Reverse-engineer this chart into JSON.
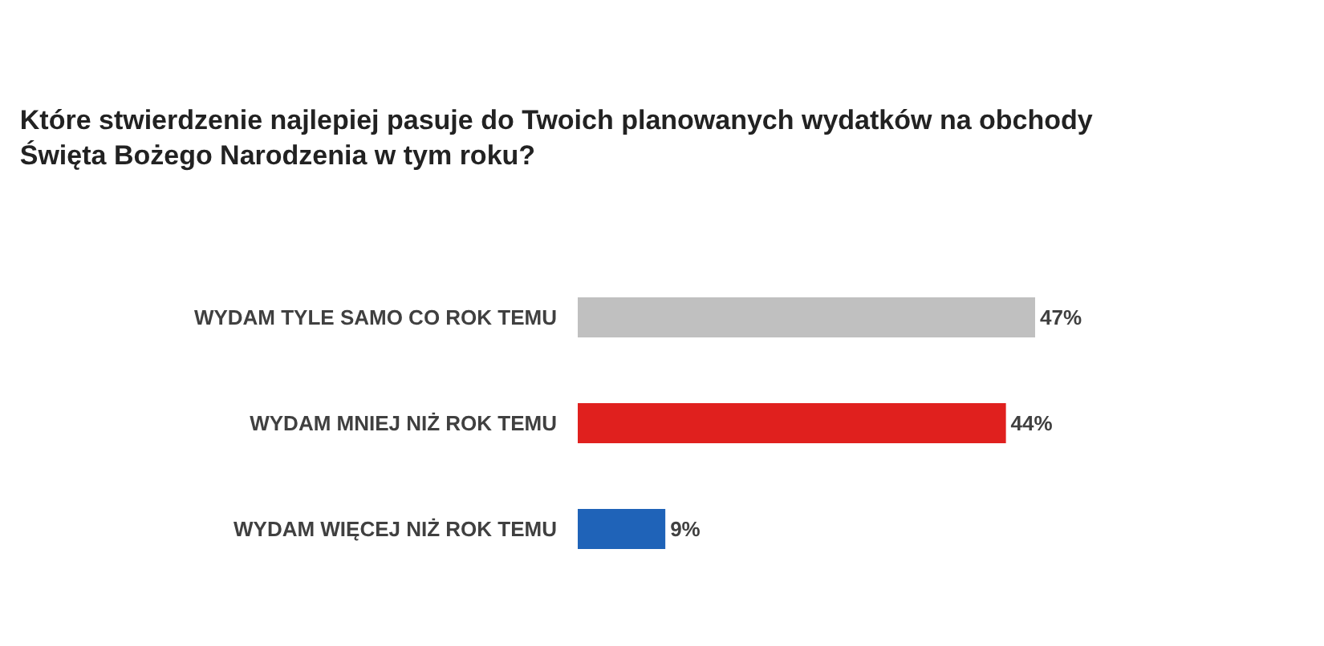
{
  "chart_data": {
    "type": "bar",
    "orientation": "horizontal",
    "title": "Które stwierdzenie najlepiej pasuje do Twoich planowanych wydatków na obchody\nŚwięta Bożego Narodzenia w tym roku?",
    "categories": [
      "WYDAM TYLE SAMO CO ROK TEMU",
      "WYDAM MNIEJ NIŻ ROK TEMU",
      "WYDAM WIĘCEJ NIŻ ROK TEMU"
    ],
    "values": [
      47,
      44,
      9
    ],
    "colors": [
      "#c0c0c0",
      "#e0201e",
      "#1f63b8"
    ],
    "value_labels": [
      "47%",
      "44%",
      "9%"
    ],
    "legend": false
  }
}
